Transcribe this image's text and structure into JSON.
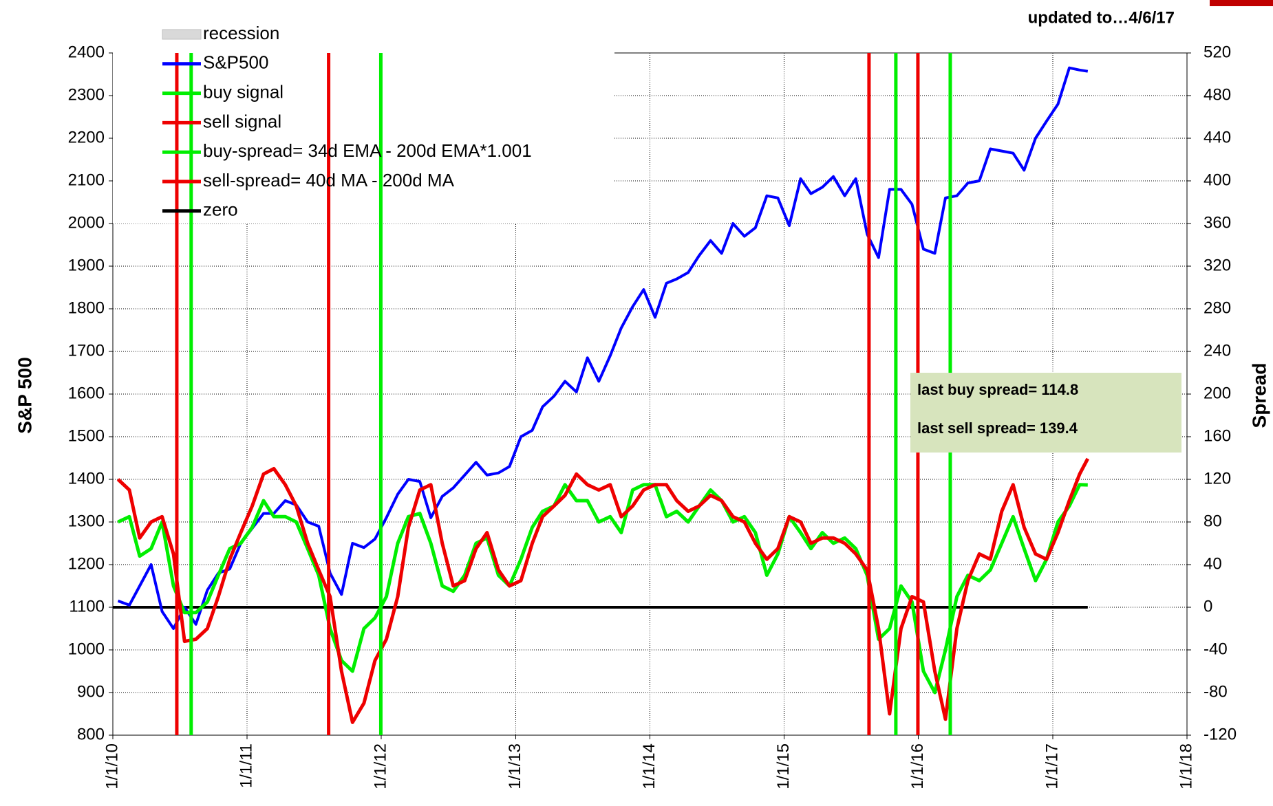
{
  "chart_data": {
    "type": "line",
    "annotation": "updated to…4/6/17",
    "ylabel": "S&P 500",
    "y2label": "Spread",
    "info_box": [
      "last buy spread= 114.8",
      "last sell spread= 139.4"
    ],
    "x": [
      "2010-01-15",
      "2010-02-15",
      "2010-03-15",
      "2010-04-15",
      "2010-05-15",
      "2010-06-15",
      "2010-07-15",
      "2010-08-15",
      "2010-09-15",
      "2010-10-15",
      "2010-11-15",
      "2010-12-15",
      "2011-01-15",
      "2011-02-15",
      "2011-03-15",
      "2011-04-15",
      "2011-05-15",
      "2011-06-15",
      "2011-07-15",
      "2011-08-15",
      "2011-09-15",
      "2011-10-15",
      "2011-11-15",
      "2011-12-15",
      "2012-01-15",
      "2012-02-15",
      "2012-03-15",
      "2012-04-15",
      "2012-05-15",
      "2012-06-15",
      "2012-07-15",
      "2012-08-15",
      "2012-09-15",
      "2012-10-15",
      "2012-11-15",
      "2012-12-15",
      "2013-01-15",
      "2013-02-15",
      "2013-03-15",
      "2013-04-15",
      "2013-05-15",
      "2013-06-15",
      "2013-07-15",
      "2013-08-15",
      "2013-09-15",
      "2013-10-15",
      "2013-11-15",
      "2013-12-15",
      "2014-01-15",
      "2014-02-15",
      "2014-03-15",
      "2014-04-15",
      "2014-05-15",
      "2014-06-15",
      "2014-07-15",
      "2014-08-15",
      "2014-09-15",
      "2014-10-15",
      "2014-11-15",
      "2014-12-15",
      "2015-01-15",
      "2015-02-15",
      "2015-03-15",
      "2015-04-15",
      "2015-05-15",
      "2015-06-15",
      "2015-07-15",
      "2015-08-15",
      "2015-09-15",
      "2015-10-15",
      "2015-11-15",
      "2015-12-15",
      "2016-01-15",
      "2016-02-15",
      "2016-03-15",
      "2016-04-15",
      "2016-05-15",
      "2016-06-15",
      "2016-07-15",
      "2016-08-15",
      "2016-09-15",
      "2016-10-15",
      "2016-11-15",
      "2016-12-15",
      "2017-01-15",
      "2017-02-15",
      "2017-03-15",
      "2017-04-06"
    ],
    "series": [
      {
        "name": "S&P500",
        "color": "#0000ff",
        "axis": "y",
        "values": [
          1115,
          1105,
          1150,
          1200,
          1090,
          1050,
          1100,
          1060,
          1140,
          1180,
          1190,
          1250,
          1285,
          1320,
          1320,
          1350,
          1340,
          1300,
          1290,
          1180,
          1130,
          1250,
          1240,
          1260,
          1310,
          1365,
          1400,
          1395,
          1310,
          1360,
          1380,
          1410,
          1440,
          1410,
          1415,
          1430,
          1500,
          1515,
          1570,
          1595,
          1630,
          1605,
          1685,
          1630,
          1690,
          1755,
          1805,
          1845,
          1780,
          1860,
          1870,
          1885,
          1925,
          1960,
          1930,
          2000,
          1970,
          1990,
          2065,
          2060,
          1995,
          2105,
          2070,
          2085,
          2110,
          2065,
          2105,
          1975,
          1920,
          2080,
          2080,
          2045,
          1940,
          1930,
          2060,
          2065,
          2095,
          2100,
          2175,
          2170,
          2165,
          2125,
          2200,
          2240,
          2280,
          2365,
          2360,
          2357
        ]
      },
      {
        "name": "buy-spread= 34d EMA - 200d EMA*1.001",
        "color": "#00ee00",
        "axis": "y2",
        "values": [
          80,
          85,
          48,
          55,
          80,
          20,
          -5,
          -5,
          5,
          30,
          55,
          60,
          75,
          100,
          85,
          85,
          80,
          55,
          30,
          -20,
          -50,
          -60,
          -20,
          -10,
          10,
          60,
          85,
          88,
          60,
          20,
          15,
          30,
          60,
          65,
          30,
          20,
          45,
          75,
          90,
          95,
          115,
          100,
          100,
          80,
          85,
          70,
          110,
          115,
          115,
          85,
          90,
          80,
          95,
          110,
          100,
          80,
          85,
          70,
          30,
          50,
          85,
          70,
          55,
          70,
          60,
          65,
          55,
          30,
          -30,
          -20,
          20,
          5,
          -60,
          -80,
          -40,
          10,
          30,
          25,
          35,
          60,
          85,
          55,
          25,
          45,
          80,
          95,
          115,
          114.8
        ]
      },
      {
        "name": "sell-spread= 40d MA - 200d MA",
        "color": "#ee0000",
        "axis": "y2",
        "values": [
          120,
          110,
          65,
          80,
          85,
          50,
          -32,
          -30,
          -20,
          10,
          45,
          70,
          95,
          125,
          130,
          115,
          95,
          60,
          35,
          10,
          -60,
          -108,
          -90,
          -50,
          -30,
          10,
          75,
          110,
          115,
          60,
          20,
          25,
          55,
          70,
          35,
          20,
          25,
          60,
          85,
          95,
          105,
          125,
          115,
          110,
          115,
          85,
          95,
          110,
          115,
          115,
          100,
          90,
          95,
          105,
          100,
          85,
          80,
          60,
          45,
          55,
          85,
          80,
          60,
          65,
          65,
          60,
          50,
          35,
          -20,
          -100,
          -20,
          10,
          5,
          -60,
          -105,
          -20,
          25,
          50,
          45,
          90,
          115,
          75,
          50,
          45,
          70,
          100,
          125,
          139.4
        ]
      }
    ],
    "signals": [
      {
        "name": "buy signal",
        "color": "#00ee00",
        "x": [
          "2010-08-02",
          "2011-12-31",
          "2015-11-01",
          "2016-03-28"
        ]
      },
      {
        "name": "sell signal",
        "color": "#ee0000",
        "x": [
          "2010-06-24",
          "2011-08-11",
          "2015-08-20",
          "2015-12-31"
        ]
      }
    ],
    "recession": {
      "name": "recession",
      "color": "#d9d9d9"
    },
    "zero_line": {
      "name": "zero",
      "color": "#000000",
      "value": 0,
      "axis": "y2"
    },
    "xlim": [
      "2010-01-01",
      "2018-01-01"
    ],
    "xticks": [
      {
        "value": "2010-01-01",
        "label": "1/1/10"
      },
      {
        "value": "2011-01-01",
        "label": "1/1/11"
      },
      {
        "value": "2012-01-01",
        "label": "1/1/12"
      },
      {
        "value": "2013-01-01",
        "label": "1/1/13"
      },
      {
        "value": "2014-01-01",
        "label": "1/1/14"
      },
      {
        "value": "2015-01-01",
        "label": "1/1/15"
      },
      {
        "value": "2016-01-01",
        "label": "1/1/16"
      },
      {
        "value": "2017-01-01",
        "label": "1/1/17"
      },
      {
        "value": "2018-01-01",
        "label": "1/1/18"
      }
    ],
    "ylim": [
      800,
      2400
    ],
    "yticks": [
      800,
      900,
      1000,
      1100,
      1200,
      1300,
      1400,
      1500,
      1600,
      1700,
      1800,
      1900,
      2000,
      2100,
      2200,
      2300,
      2400
    ],
    "y2lim": [
      -120,
      520
    ],
    "y2ticks": [
      -120,
      -80,
      -40,
      0,
      40,
      80,
      120,
      160,
      200,
      240,
      280,
      320,
      360,
      400,
      440,
      480,
      520
    ],
    "grid": true,
    "legend": "upper left"
  }
}
